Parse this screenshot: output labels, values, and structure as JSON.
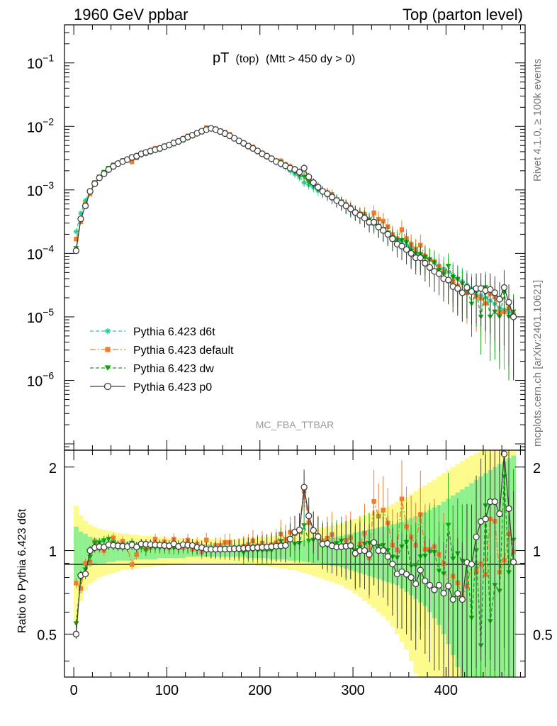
{
  "header": {
    "left": "1960 GeV ppbar",
    "right": "Top (parton level)"
  },
  "side": {
    "rivet": "Rivet 4.1.0, ≥ 100k events",
    "mcplots": "mcplots.cern.ch [arXiv:2401.10621]"
  },
  "chart_data": [
    {
      "type": "line",
      "title": "pT",
      "title_sub": "(top)",
      "title_cut": "(Mtt > 450 dy > 0)",
      "analysis": "MC_FBA_TTBAR",
      "yscale": "log",
      "ylim_exp": [
        -7.1,
        -0.4
      ],
      "y_ticks": [
        {
          "exp": -6,
          "base": "10",
          "sup": "−6"
        },
        {
          "exp": -5,
          "base": "10",
          "sup": "−5"
        },
        {
          "exp": -4,
          "base": "10",
          "sup": "−4"
        },
        {
          "exp": -3,
          "base": "10",
          "sup": "−3"
        },
        {
          "exp": -2,
          "base": "10",
          "sup": "−2"
        },
        {
          "exp": -1,
          "base": "10",
          "sup": "−1"
        }
      ],
      "xlim": [
        -10,
        485
      ],
      "legend": {
        "position": "bottom-left",
        "entries": [
          {
            "label": "Pythia 6.423 d6t",
            "color": "#1fcf9e",
            "marker": "star",
            "dash": "dashed"
          },
          {
            "label": "Pythia 6.423 default",
            "color": "#f07c2c",
            "marker": "square",
            "dash": "dashdot"
          },
          {
            "label": "Pythia 6.423 dw",
            "color": "#10a810",
            "marker": "triangle-down",
            "dash": "dashed"
          },
          {
            "label": "Pythia 6.423 p0",
            "color": "#404040",
            "marker": "circle-open",
            "dash": "solid"
          }
        ]
      },
      "x": [
        2.5,
        7.5,
        12.5,
        17.5,
        22.5,
        27.5,
        32.5,
        37.5,
        42.5,
        47.5,
        52.5,
        57.5,
        62.5,
        67.5,
        72.5,
        77.5,
        82.5,
        87.5,
        92.5,
        97.5,
        102.5,
        107.5,
        112.5,
        117.5,
        122.5,
        127.5,
        132.5,
        137.5,
        142.5,
        147.5,
        152.5,
        157.5,
        162.5,
        167.5,
        172.5,
        177.5,
        182.5,
        187.5,
        192.5,
        197.5,
        202.5,
        207.5,
        212.5,
        217.5,
        222.5,
        227.5,
        232.5,
        237.5,
        242.5,
        247.5,
        252.5,
        257.5,
        262.5,
        267.5,
        272.5,
        277.5,
        282.5,
        287.5,
        292.5,
        297.5,
        302.5,
        307.5,
        312.5,
        317.5,
        322.5,
        327.5,
        332.5,
        337.5,
        342.5,
        347.5,
        352.5,
        357.5,
        362.5,
        367.5,
        372.5,
        377.5,
        382.5,
        387.5,
        392.5,
        397.5,
        402.5,
        407.5,
        412.5,
        417.5,
        422.5,
        427.5,
        432.5,
        437.5,
        442.5,
        447.5,
        452.5,
        457.5,
        462.5,
        467.5,
        472.5
      ],
      "series": [
        {
          "name": "Pythia 6.423 d6t",
          "values": [
            0.00022,
            0.00043,
            0.00068,
            0.00095,
            0.00122,
            0.0015,
            0.00175,
            0.002,
            0.00225,
            0.0025,
            0.0027,
            0.0029,
            0.0031,
            0.0033,
            0.0035,
            0.0037,
            0.0039,
            0.0041,
            0.0043,
            0.0046,
            0.0049,
            0.0052,
            0.0056,
            0.006,
            0.0065,
            0.007,
            0.0076,
            0.0082,
            0.0088,
            0.0092,
            0.0088,
            0.0082,
            0.0076,
            0.007,
            0.0064,
            0.0058,
            0.0053,
            0.0048,
            0.0044,
            0.004,
            0.0036,
            0.0033,
            0.003,
            0.0027,
            0.0025,
            0.0023,
            0.002,
            0.0018,
            0.0016,
            0.0013,
            0.0012,
            0.0011,
            0.00098,
            0.0009,
            0.00082,
            0.00074,
            0.00066,
            0.0006,
            0.00054,
            0.00048,
            0.00045,
            0.0004,
            0.00036,
            0.00032,
            0.00029,
            0.00026,
            0.00023,
            0.00021,
            0.00019,
            0.00017,
            0.000155,
            0.00014,
            0.000125,
            0.000112,
            0.0001,
            9e-05,
            8e-05,
            7.2e-05,
            6.4e-05,
            5.7e-05,
            5.1e-05,
            4.5e-05,
            4e-05,
            3.6e-05,
            3.2e-05,
            2.8e-05,
            2.5e-05,
            2.2e-05,
            2e-05,
            1.8e-05,
            1.6e-05,
            1.4e-05,
            1.3e-05,
            1.2e-05,
            1.1e-05
          ]
        },
        {
          "name": "Pythia 6.423 default",
          "values": [
            0.000168,
            0.000314,
            0.000612,
            0.000864,
            0.00131,
            0.00153,
            0.00175,
            0.0021,
            0.0025,
            0.00262,
            0.00292,
            0.00299,
            0.00276,
            0.00319,
            0.00368,
            0.00375,
            0.00401,
            0.00451,
            0.00446,
            0.00495,
            0.00502,
            0.00572,
            0.00576,
            0.00615,
            0.00709,
            0.00708,
            0.00802,
            0.00812,
            0.00961,
            0.00929,
            0.00918,
            0.00855,
            0.00813,
            0.00749,
            0.00651,
            0.00593,
            0.0055,
            0.00504,
            0.00477,
            0.00416,
            0.00383,
            0.00341,
            0.00315,
            0.00288,
            0.00287,
            0.00252,
            0.00233,
            0.00207,
            0.00187,
            0.00213,
            0.00151,
            0.00129,
            0.00111,
            0.000971,
            0.000909,
            0.000846,
            0.000683,
            0.000623,
            0.000588,
            0.000534,
            0.000434,
            0.000422,
            0.000416,
            0.000301,
            0.000436,
            0.000346,
            0.000322,
            0.000264,
            0.000199,
            0.000171,
            0.000238,
            0.000171,
            0.00014,
            0.000117,
            0.000135,
            9.09e-05,
            8.08e-05,
            7.44e-05,
            6.2e-05,
            5.11e-05,
            3.83e-05,
            3.64e-05,
            3.06e-05,
            2.45e-05,
            2.39e-05,
            2.5e-05,
            2.1e-05,
            1.97e-05,
            1.64e-05,
            2.34e-05,
            2.04e-05,
            1.17e-05,
            1.2e-05,
            1.38e-05,
            1.09e-05
          ]
        },
        {
          "name": "Pythia 6.423 dw",
          "values": [
            0.00012,
            0.00034,
            0.00058,
            0.0009,
            0.0013,
            0.0016,
            0.0019,
            0.0022,
            0.0024,
            0.0026,
            0.0028,
            0.003,
            0.0033,
            0.0034,
            0.0036,
            0.0037,
            0.004,
            0.0042,
            0.0044,
            0.0047,
            0.005,
            0.0053,
            0.0057,
            0.0062,
            0.0067,
            0.0072,
            0.0078,
            0.0083,
            0.0089,
            0.0092,
            0.0088,
            0.0082,
            0.0076,
            0.007,
            0.0064,
            0.0058,
            0.0052,
            0.0048,
            0.0044,
            0.004,
            0.0036,
            0.0033,
            0.003,
            0.0028,
            0.0027,
            0.0024,
            0.0022,
            0.0019,
            0.0017,
            0.0016,
            0.0013,
            0.0012,
            0.0011,
            0.00095,
            0.00085,
            0.00078,
            0.0007,
            0.00065,
            0.00055,
            0.0005,
            0.00045,
            0.00041,
            0.00038,
            0.00034,
            0.00031,
            0.00027,
            0.00024,
            0.00021,
            0.00018,
            0.00016,
            0.00016,
            0.00015,
            0.00011,
            9.9e-05,
            9.5e-05,
            8.6e-05,
            7.9e-05,
            7.1e-05,
            5.4e-05,
            4.7e-05,
            6.3e-05,
            4.2e-05,
            3.9e-05,
            3.3e-05,
            2.9e-05,
            1.6e-05,
            2.5e-05,
            1e-05,
            2.9e-05,
            1e-05,
            1.2e-05,
            1e-05,
            2.4e-05,
            1e-05,
            1.2e-05
          ]
        },
        {
          "name": "Pythia 6.423 p0",
          "values": [
            0.00011,
            0.00035,
            0.00056,
            0.00095,
            0.00125,
            0.00155,
            0.0018,
            0.0021,
            0.00235,
            0.0026,
            0.0028,
            0.003,
            0.00325,
            0.0034,
            0.0037,
            0.0039,
            0.0041,
            0.0043,
            0.0045,
            0.0048,
            0.0051,
            0.0055,
            0.0058,
            0.0063,
            0.0068,
            0.0073,
            0.0078,
            0.0084,
            0.0089,
            0.0093,
            0.0089,
            0.0083,
            0.0077,
            0.0071,
            0.0065,
            0.0059,
            0.0054,
            0.0049,
            0.0045,
            0.0041,
            0.0037,
            0.0034,
            0.0031,
            0.0028,
            0.0026,
            0.0024,
            0.0022,
            0.0021,
            0.0019,
            0.0022,
            0.0016,
            0.0013,
            0.0011,
            0.00095,
            0.00087,
            0.00077,
            0.00068,
            0.00062,
            0.00056,
            0.0005,
            0.00044,
            0.0004,
            0.00036,
            0.00031,
            0.00031,
            0.00026,
            0.00023,
            0.0002,
            0.00017,
            0.00014,
            0.00013,
            0.000115,
            0.0001,
            8.5e-05,
            8.5e-05,
            7e-05,
            6e-05,
            5.2e-05,
            4.8e-05,
            4e-05,
            3.8e-05,
            3e-05,
            2.8e-05,
            2.4e-05,
            2.9e-05,
            2.5e-05,
            2.8e-05,
            2.8e-05,
            2.6e-05,
            2.7e-05,
            2.4e-05,
            1.9e-05,
            2.9e-05,
            1.7e-05,
            1e-05
          ]
        }
      ]
    },
    {
      "type": "line",
      "ylabel": "Ratio to Pythia 6.423 d6t",
      "reference": "Pythia 6.423 d6t",
      "ylim": [
        0.35,
        2.3
      ],
      "y_ticks": [
        "0.5",
        "1",
        "2"
      ],
      "xlim": [
        -10,
        485
      ],
      "x_ticks": [
        "0",
        "100",
        "200",
        "300",
        "400"
      ],
      "band_inner_rel": [
        0.22,
        0.17,
        0.15,
        0.12,
        0.11,
        0.1,
        0.1,
        0.09,
        0.09,
        0.08,
        0.08,
        0.08,
        0.08,
        0.07,
        0.07,
        0.07,
        0.07,
        0.07,
        0.06,
        0.06,
        0.06,
        0.06,
        0.06,
        0.06,
        0.05,
        0.05,
        0.05,
        0.05,
        0.05,
        0.05,
        0.05,
        0.05,
        0.05,
        0.05,
        0.05,
        0.05,
        0.05,
        0.06,
        0.06,
        0.06,
        0.06,
        0.06,
        0.07,
        0.07,
        0.07,
        0.07,
        0.08,
        0.08,
        0.08,
        0.09,
        0.09,
        0.1,
        0.1,
        0.11,
        0.11,
        0.12,
        0.12,
        0.13,
        0.14,
        0.15,
        0.16,
        0.17,
        0.18,
        0.19,
        0.2,
        0.21,
        0.22,
        0.23,
        0.24,
        0.25,
        0.27,
        0.29,
        0.31,
        0.33,
        0.35,
        0.37,
        0.4,
        0.43,
        0.46,
        0.5,
        0.54,
        0.58,
        0.62,
        0.66,
        0.7,
        0.75,
        0.8,
        0.85,
        0.9,
        0.95,
        1.0,
        1.05,
        1.1,
        1.15,
        1.2
      ],
      "band_outer_rel": [
        0.45,
        0.34,
        0.28,
        0.24,
        0.22,
        0.2,
        0.19,
        0.18,
        0.17,
        0.16,
        0.15,
        0.15,
        0.14,
        0.14,
        0.13,
        0.13,
        0.13,
        0.12,
        0.12,
        0.12,
        0.11,
        0.11,
        0.11,
        0.11,
        0.1,
        0.1,
        0.1,
        0.1,
        0.1,
        0.1,
        0.1,
        0.1,
        0.1,
        0.1,
        0.1,
        0.1,
        0.11,
        0.11,
        0.11,
        0.12,
        0.12,
        0.12,
        0.13,
        0.13,
        0.14,
        0.14,
        0.15,
        0.15,
        0.16,
        0.17,
        0.18,
        0.19,
        0.2,
        0.21,
        0.22,
        0.23,
        0.24,
        0.25,
        0.27,
        0.28,
        0.3,
        0.32,
        0.34,
        0.36,
        0.38,
        0.4,
        0.42,
        0.44,
        0.47,
        0.5,
        0.53,
        0.56,
        0.6,
        0.64,
        0.68,
        0.72,
        0.76,
        0.8,
        0.85,
        0.9,
        0.95,
        1.0,
        1.05,
        1.1,
        1.15,
        1.2,
        1.25,
        1.3,
        1.35,
        1.4,
        1.45,
        1.5,
        1.55,
        1.6,
        1.65
      ]
    }
  ]
}
